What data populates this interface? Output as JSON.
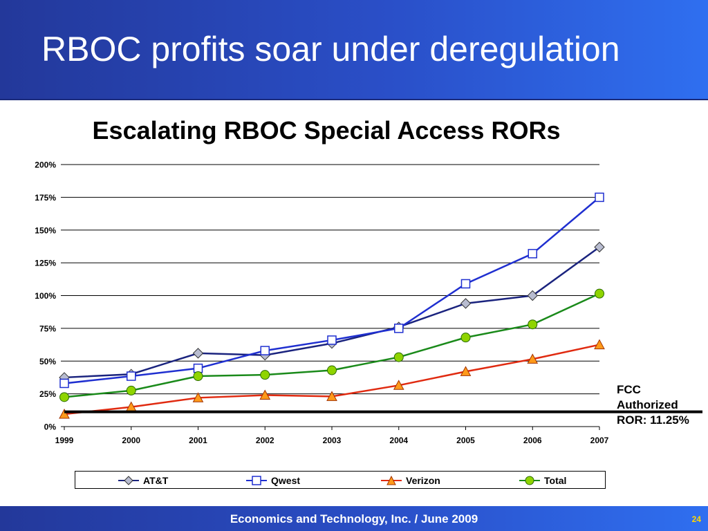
{
  "header": {
    "title": "RBOC profits soar under deregulation"
  },
  "footer": {
    "text": "Economics and Technology, Inc.  /  June 2009",
    "page_number": "24"
  },
  "annotation": {
    "line1": "FCC",
    "line2": "Authorized",
    "line3": "ROR: 11.25%"
  },
  "colors": {
    "header_bg": "#2a4fc8",
    "att": "#1a237e",
    "qwest": "#1f2fd0",
    "verizon": "#e02a10",
    "total": "#1a8a1a",
    "ror_line": "#000000"
  },
  "chart_data": {
    "type": "line",
    "title": "Escalating RBOC Special Access RORs",
    "xlabel": "",
    "ylabel": "",
    "x": [
      "1999",
      "2000",
      "2001",
      "2002",
      "2003",
      "2004",
      "2005",
      "2006",
      "2007"
    ],
    "y_ticks": [
      "0%",
      "25%",
      "50%",
      "75%",
      "100%",
      "125%",
      "150%",
      "175%",
      "200%"
    ],
    "ylim": [
      0,
      200
    ],
    "grid": true,
    "legend_position": "bottom",
    "series": [
      {
        "name": "AT&T",
        "marker": "diamond",
        "values": [
          37.5,
          40,
          56,
          54.5,
          63.5,
          76,
          94,
          100,
          137
        ]
      },
      {
        "name": "Qwest",
        "marker": "square",
        "values": [
          33,
          38.5,
          44.5,
          58,
          66,
          75,
          109,
          132,
          175
        ]
      },
      {
        "name": "Verizon",
        "marker": "triangle",
        "values": [
          9.5,
          15,
          22,
          24,
          23,
          31.5,
          42,
          51.5,
          62.5
        ]
      },
      {
        "name": "Total",
        "marker": "circle",
        "values": [
          22.5,
          27.5,
          38.5,
          39.5,
          43,
          53,
          68,
          78,
          101.5
        ]
      }
    ],
    "reference_line": {
      "value": 11.25
    }
  }
}
